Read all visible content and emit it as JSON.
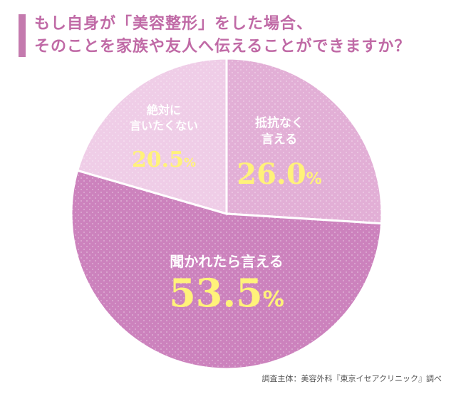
{
  "title": {
    "line1": "もし自身が「美容整形」をした場合、",
    "line2": "そのことを家族や友人へ伝えることができますか？"
  },
  "chart_data": {
    "type": "pie",
    "slices": [
      {
        "label": "抵抗なく\n言える",
        "value": 26.0,
        "display": "26.0",
        "color": "#e2afd6"
      },
      {
        "label": "聞かれたら言える",
        "value": 53.5,
        "display": "53.5",
        "color": "#cc82bd"
      },
      {
        "label": "絶対に\n言いたくない",
        "value": 20.5,
        "display": "20.5",
        "color": "#efcde7"
      }
    ],
    "unit": "%",
    "label_color": "#ffffff",
    "value_color": "#fff27a"
  },
  "source": "調査主体：美容外科『東京イセアクリニック』調べ"
}
